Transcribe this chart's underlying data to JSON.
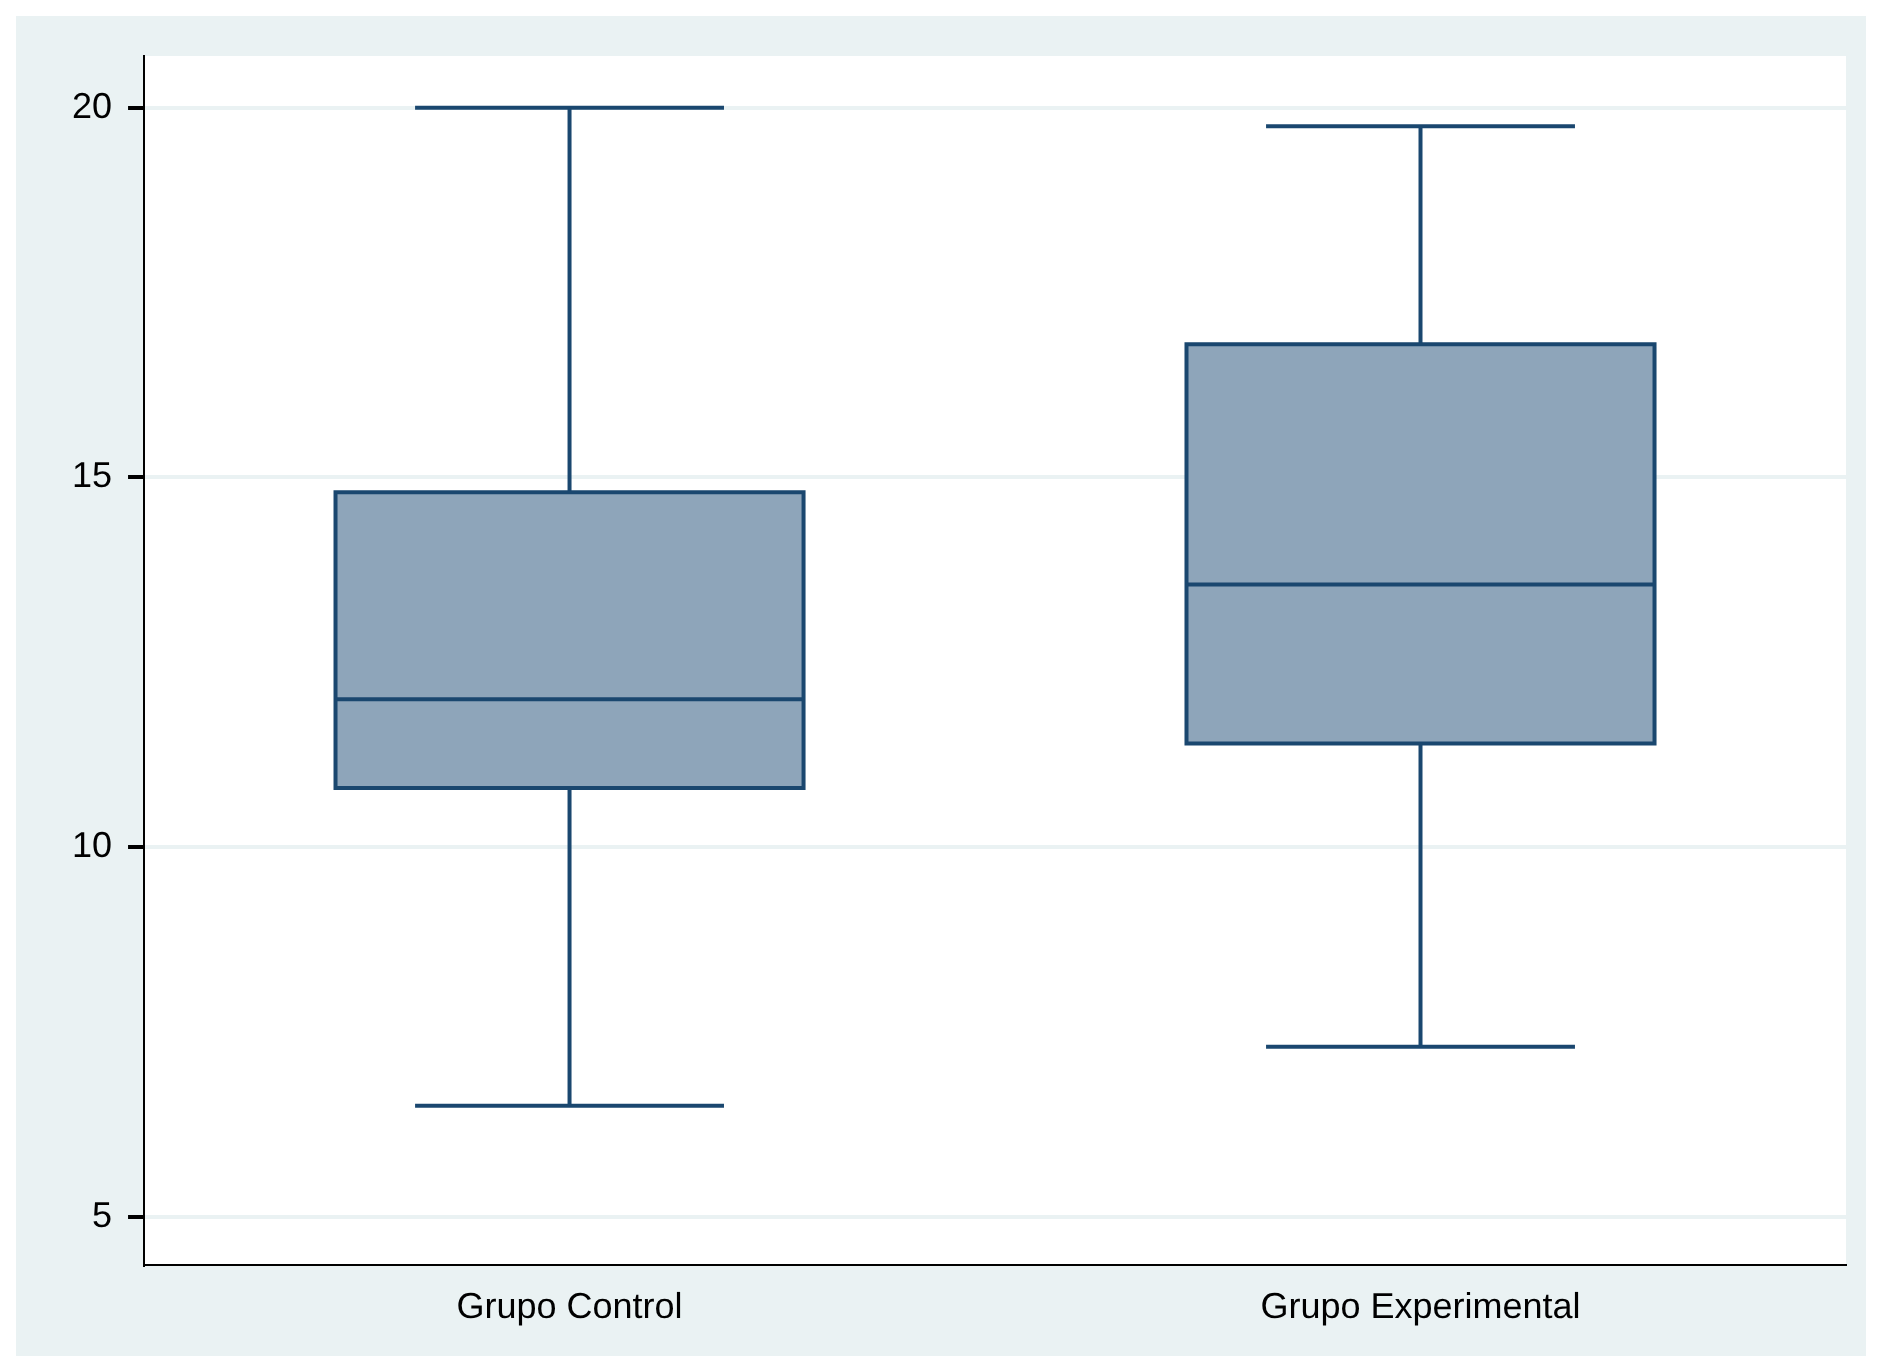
{
  "chart_data": {
    "type": "box",
    "categories": [
      "Grupo Control",
      "Grupo Experimental"
    ],
    "boxes": [
      {
        "low": 6.5,
        "q1": 10.8,
        "median": 12.0,
        "q3": 14.8,
        "high": 20.0
      },
      {
        "low": 7.3,
        "q1": 11.4,
        "median": 13.55,
        "q3": 16.8,
        "high": 19.75
      }
    ],
    "color": "#8ea5ba",
    "ylim": [
      4.35,
      20.7
    ],
    "yticks": [
      5,
      10,
      15,
      20
    ],
    "grid": "y",
    "legend": false
  }
}
